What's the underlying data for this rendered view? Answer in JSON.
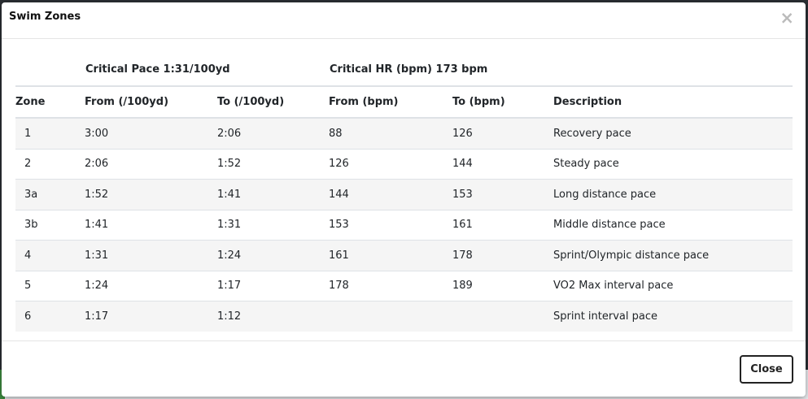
{
  "modal": {
    "title": "Swim Zones",
    "close_icon": "×",
    "close_button_label": "Close"
  },
  "summary": {
    "critical_pace": "Critical Pace 1:31/100yd",
    "critical_hr": "Critical HR (bpm) 173 bpm"
  },
  "table": {
    "columns": [
      "Zone",
      "From (/100yd)",
      "To (/100yd)",
      "From (bpm)",
      "To (bpm)",
      "Description"
    ],
    "rows": [
      [
        "1",
        "3:00",
        "2:06",
        "88",
        "126",
        "Recovery pace"
      ],
      [
        "2",
        "2:06",
        "1:52",
        "126",
        "144",
        "Steady pace"
      ],
      [
        "3a",
        "1:52",
        "1:41",
        "144",
        "153",
        "Long distance pace"
      ],
      [
        "3b",
        "1:41",
        "1:31",
        "153",
        "161",
        "Middle distance pace"
      ],
      [
        "4",
        "1:31",
        "1:24",
        "161",
        "178",
        "Sprint/Olympic distance pace"
      ],
      [
        "5",
        "1:24",
        "1:17",
        "178",
        "189",
        "VO2 Max interval pace"
      ],
      [
        "6",
        "1:17",
        "1:12",
        "",
        "",
        "Sprint interval pace"
      ]
    ]
  },
  "colors": {
    "stripe": "#f5f5f5",
    "border": "#dee2e6",
    "backdrop": "#2b2f33"
  }
}
